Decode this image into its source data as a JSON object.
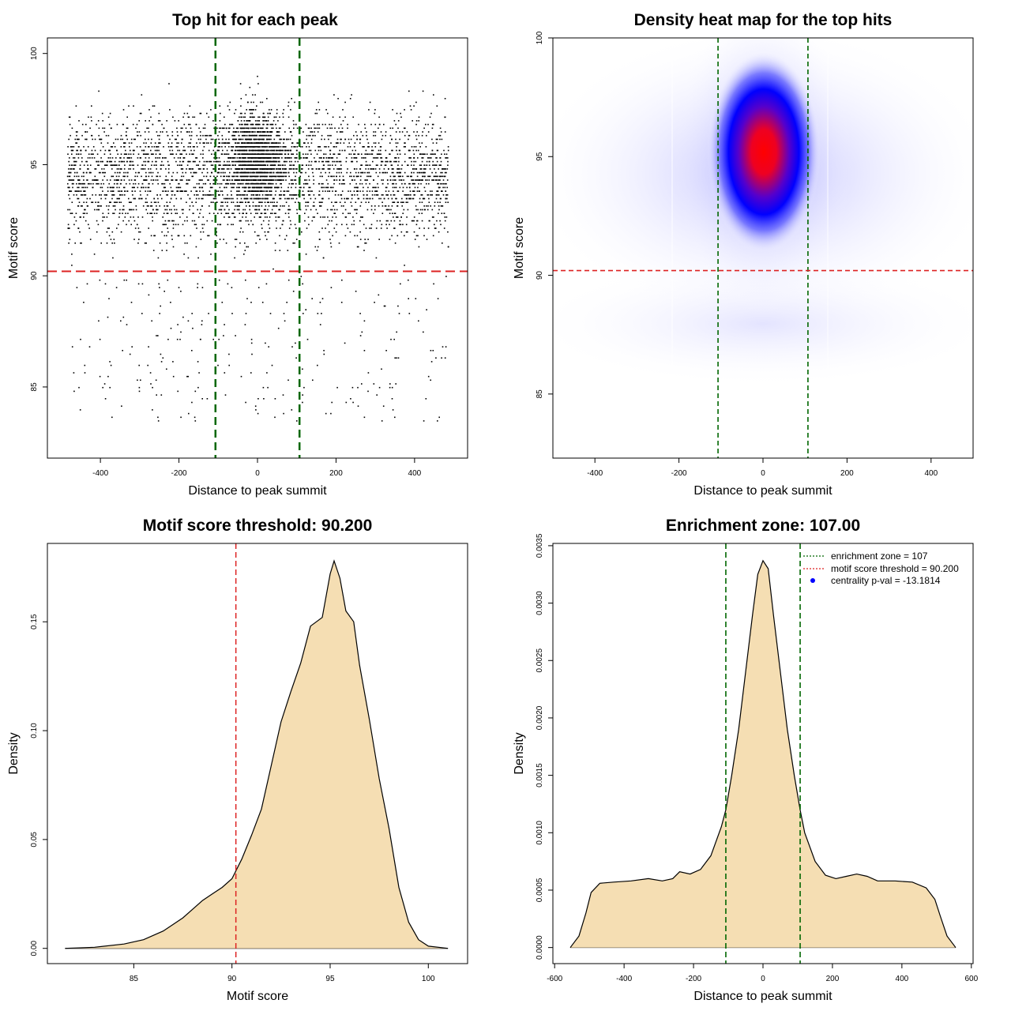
{
  "colors": {
    "threshold": "#dd2222",
    "zone": "#006600",
    "fill": "#f5deb3",
    "points": "#000000",
    "heat_low": "#ffffff",
    "heat_mid": "#0000ff",
    "heat_high": "#ff0000"
  },
  "chart_data": [
    {
      "id": "scatter",
      "type": "scatter",
      "title": "Top hit for each peak",
      "xlabel": "Distance to peak summit",
      "ylabel": "Motif score",
      "xlim": [
        -535,
        535
      ],
      "ylim": [
        81.8,
        100.7
      ],
      "xticks": [
        -400,
        -200,
        0,
        200,
        400
      ],
      "yticks": [
        85,
        90,
        95,
        100
      ],
      "threshold": 90.2,
      "zone": [
        -107,
        107
      ],
      "grid": false
    },
    {
      "id": "heatmap",
      "type": "heatmap",
      "title": "Density heat map for the top hits",
      "xlabel": "Distance to peak summit",
      "ylabel": "Motif score",
      "xlim": [
        -500,
        500
      ],
      "ylim": [
        82.3,
        100
      ],
      "xticks": [
        -400,
        -200,
        0,
        200,
        400
      ],
      "yticks": [
        85,
        90,
        95,
        100
      ],
      "threshold": 90.2,
      "zone": [
        -107,
        107
      ],
      "peak": [
        2,
        95.2
      ]
    },
    {
      "id": "score_density",
      "type": "area",
      "title": "Motif score threshold: 90.200",
      "xlabel": "Motif score",
      "ylabel": "Density",
      "xlim": [
        80.6,
        102
      ],
      "ylim": [
        -0.007,
        0.186
      ],
      "xticks": [
        85,
        90,
        95,
        100
      ],
      "yticks": [
        0.0,
        0.05,
        0.1,
        0.15
      ],
      "ytick_labels": [
        "0.00",
        "0.05",
        "0.10",
        "0.15"
      ],
      "threshold": 90.2,
      "x": [
        81.5,
        83,
        84.5,
        85.5,
        86.5,
        87.5,
        88,
        88.5,
        89,
        89.5,
        90,
        90.5,
        91,
        91.5,
        92,
        92.5,
        93,
        93.5,
        94,
        94.3,
        94.6,
        95,
        95.2,
        95.5,
        95.8,
        96.2,
        96.5,
        97,
        97.5,
        98,
        98.5,
        99,
        99.5,
        100,
        101
      ],
      "values": [
        0,
        0.0005,
        0.002,
        0.004,
        0.008,
        0.014,
        0.018,
        0.022,
        0.025,
        0.028,
        0.032,
        0.041,
        0.052,
        0.064,
        0.084,
        0.104,
        0.118,
        0.131,
        0.148,
        0.15,
        0.152,
        0.172,
        0.178,
        0.17,
        0.155,
        0.15,
        0.13,
        0.105,
        0.078,
        0.055,
        0.028,
        0.012,
        0.004,
        0.001,
        0
      ]
    },
    {
      "id": "position_density",
      "type": "area",
      "title": "Enrichment zone: 107.00",
      "xlabel": "Distance to peak summit",
      "ylabel": "Density",
      "xlim": [
        -605,
        605
      ],
      "ylim": [
        -0.00014,
        0.00352
      ],
      "xticks": [
        -600,
        -400,
        -200,
        0,
        200,
        400,
        600
      ],
      "yticks": [
        0,
        0.0005,
        0.001,
        0.0015,
        0.002,
        0.0025,
        0.003,
        0.0035
      ],
      "ytick_labels": [
        "0.0000",
        "0.0005",
        "0.0010",
        "0.0015",
        "0.0020",
        "0.0025",
        "0.0030",
        "0.0035"
      ],
      "zone": [
        -107,
        107
      ],
      "x": [
        -555,
        -530,
        -510,
        -495,
        -470,
        -430,
        -380,
        -330,
        -290,
        -260,
        -240,
        -210,
        -180,
        -150,
        -120,
        -107,
        -90,
        -70,
        -50,
        -30,
        -15,
        0,
        15,
        30,
        50,
        70,
        90,
        107,
        120,
        150,
        180,
        210,
        240,
        270,
        300,
        330,
        380,
        430,
        470,
        495,
        510,
        530,
        555
      ],
      "values": [
        0,
        0.0001,
        0.0003,
        0.00048,
        0.00056,
        0.00057,
        0.00058,
        0.0006,
        0.00058,
        0.0006,
        0.00066,
        0.00064,
        0.00068,
        0.0008,
        0.00105,
        0.0012,
        0.0015,
        0.0019,
        0.0024,
        0.0029,
        0.00325,
        0.00337,
        0.0033,
        0.0029,
        0.0024,
        0.0019,
        0.0015,
        0.0012,
        0.001,
        0.00075,
        0.00063,
        0.0006,
        0.00062,
        0.00064,
        0.00062,
        0.00058,
        0.00058,
        0.00057,
        0.00052,
        0.00042,
        0.00028,
        0.0001,
        0
      ],
      "legend": {
        "position": "top-right",
        "entries": [
          {
            "label": "enrichment zone = 107",
            "symbol": "dotted-line",
            "color": "#006600"
          },
          {
            "label": "motif score threshold = 90.200",
            "symbol": "dotted-line",
            "color": "#dd2222"
          },
          {
            "label": "centrality p-val = -13.1814",
            "symbol": "dot",
            "color": "#0000ff"
          }
        ]
      }
    }
  ]
}
